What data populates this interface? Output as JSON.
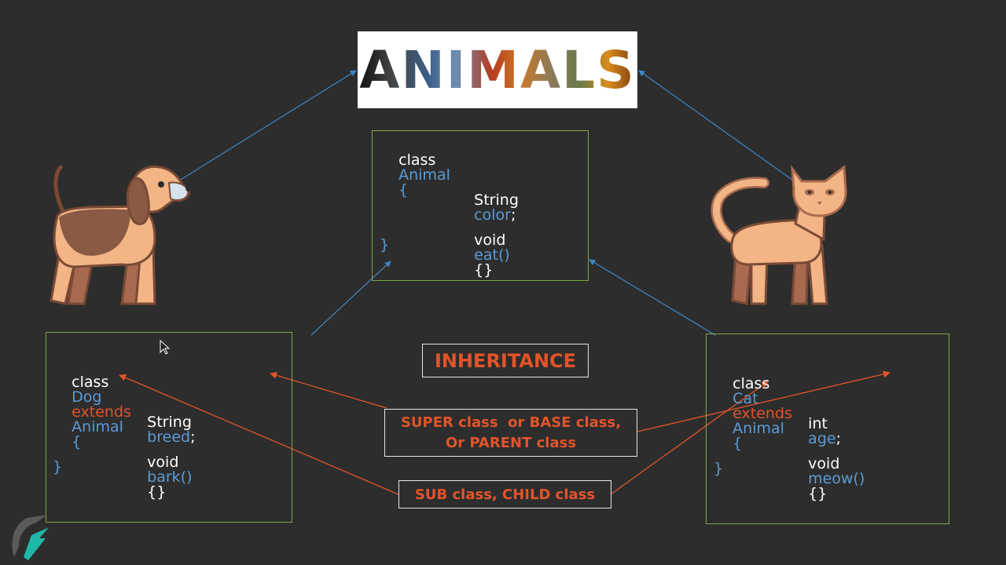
{
  "banner": {
    "title": "ANIMALS"
  },
  "animal_class": {
    "l1_kw": "class",
    "l1_name": "Animal",
    "l1_brace": "{",
    "l2_type": "String",
    "l2_name": "color",
    "l2_end": ";",
    "l3_type": "void",
    "l3_name": "eat()",
    "l3_body": "{}",
    "close": "}"
  },
  "dog_class": {
    "l1_kw": "class",
    "l1_name": "Dog",
    "l1_ext": "extends",
    "l1_parent": "Animal",
    "l1_brace": "{",
    "l2_type": "String",
    "l2_name": "breed",
    "l2_end": ";",
    "l3_type": "void",
    "l3_name": "bark()",
    "l3_body": "{}",
    "close": "}"
  },
  "cat_class": {
    "l1_kw": "class",
    "l1_name": "Cat",
    "l1_ext": "extends",
    "l1_parent": "Animal",
    "l1_brace": "{",
    "l2_type": "int",
    "l2_name": "age",
    "l2_end": ";",
    "l3_type": "void",
    "l3_name": "meow()",
    "l3_body": "{}",
    "close": "}"
  },
  "labels": {
    "inheritance": "INHERITANCE",
    "super_line1": "SUPER class  or BASE class,",
    "super_line2": "Or PARENT class",
    "sub": "SUB class, CHILD class"
  },
  "colors": {
    "background": "#2d2d2d",
    "keyword_blue": "#5b9bd5",
    "keyword_orange": "#e2542a",
    "box_border_green": "#7fa84a",
    "arrow_blue": "#3f86c4",
    "arrow_orange": "#e2542a"
  },
  "icons": {
    "dog": "dog-icon",
    "cat": "cat-icon",
    "logo": "logo-icon",
    "cursor": "mouse-cursor-icon"
  }
}
